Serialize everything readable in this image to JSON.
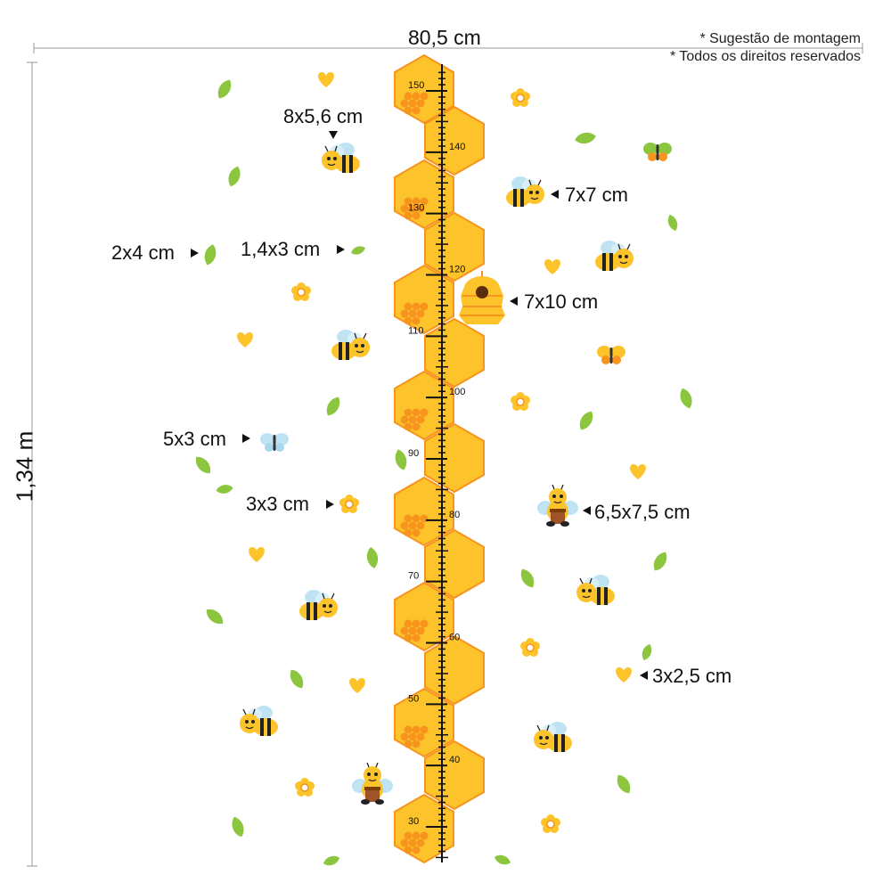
{
  "notes": {
    "line1": "* Sugestão de montagem",
    "line2": "* Todos os direitos reservados"
  },
  "dimensions": {
    "width": "80,5 cm",
    "height": "1,34 m"
  },
  "size_labels": {
    "large_bee": "8x5,6 cm",
    "leaf_large": "2x4 cm",
    "leaf_small": "1,4x3 cm",
    "side_bee": "7x7 cm",
    "beehive": "7x10 cm",
    "butterfly": "5x3 cm",
    "flower": "3x3 cm",
    "honey_bee": "6,5x7,5 cm",
    "heart": "3x2,5 cm"
  },
  "ruler": {
    "labels": [
      "150",
      "140",
      "130",
      "120",
      "110",
      "100",
      "90",
      "80",
      "70",
      "60",
      "50",
      "40",
      "30"
    ],
    "min_cm": 25,
    "max_cm": 153
  },
  "colors": {
    "honey_yellow": "#FDC32A",
    "honey_orange": "#F7941D",
    "leaf_green": "#8CC63F",
    "bee_wing": "#BFE3F2",
    "ink": "#111111"
  },
  "icons": [
    "bee-icon",
    "honey-bee-icon",
    "beehive-icon",
    "butterfly-icon",
    "flower-icon",
    "heart-icon",
    "leaf-icon",
    "arrow-icon"
  ]
}
